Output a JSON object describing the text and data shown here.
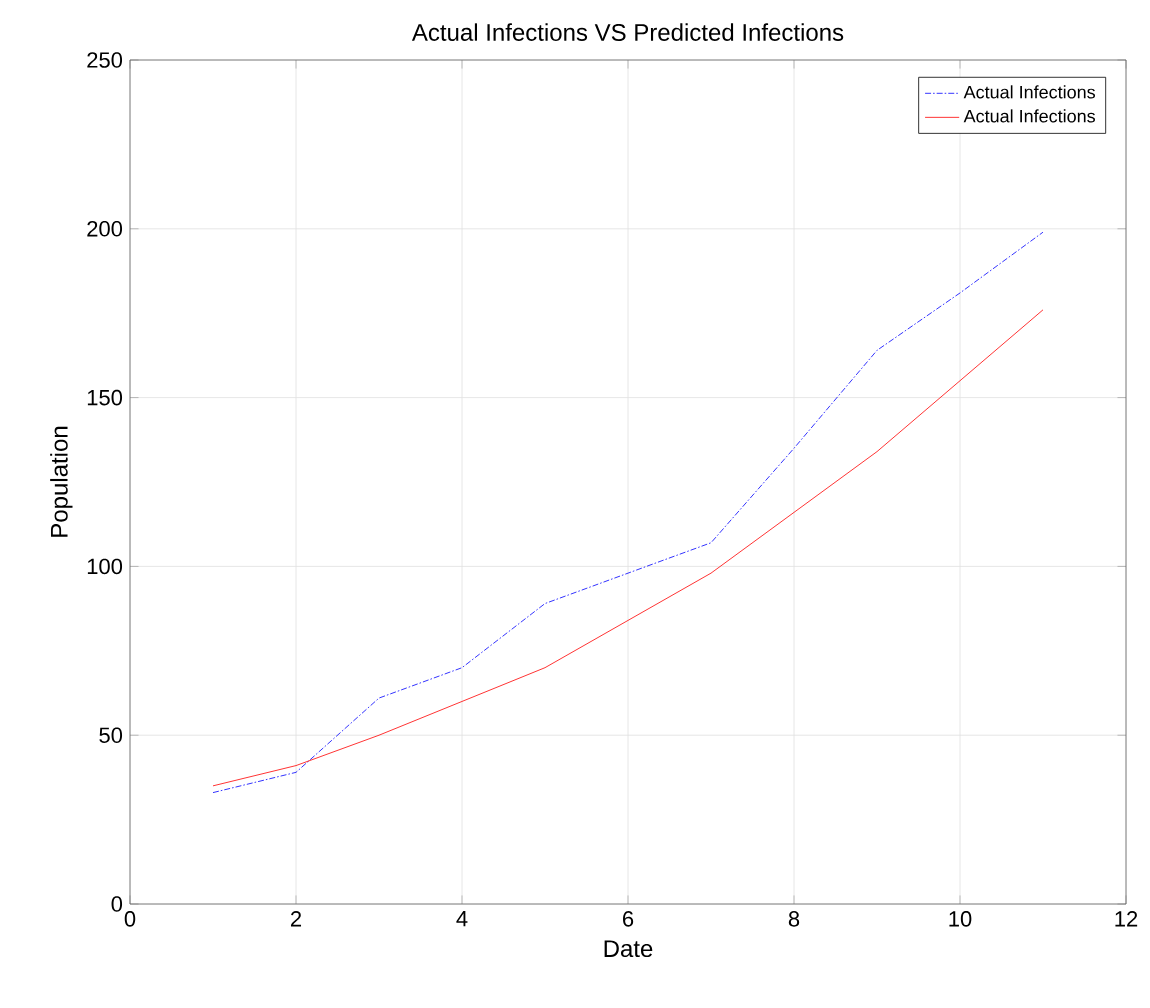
{
  "chart_data": {
    "type": "line",
    "title": "Actual Infections VS Predicted Infections",
    "xlabel": "Date",
    "ylabel": "Population",
    "x": [
      1,
      2,
      3,
      4,
      5,
      6,
      7,
      8,
      9,
      10,
      11
    ],
    "series": [
      {
        "name": "Actual Infections",
        "color": "#0000ff",
        "line_style": "dashdot",
        "values": [
          33,
          39,
          61,
          70,
          89,
          98,
          107,
          135,
          164,
          181,
          199
        ]
      },
      {
        "name": "Actual Infections",
        "color": "#ff0000",
        "line_style": "solid",
        "values": [
          35,
          41,
          50,
          60,
          70,
          84,
          98,
          116,
          134,
          155,
          176
        ]
      }
    ],
    "xlim": [
      0,
      12
    ],
    "ylim": [
      0,
      250
    ],
    "xticks": [
      0,
      2,
      4,
      6,
      8,
      10,
      12
    ],
    "yticks": [
      0,
      50,
      100,
      150,
      200,
      250
    ],
    "grid": true,
    "legend": "top right",
    "marker": "none"
  }
}
